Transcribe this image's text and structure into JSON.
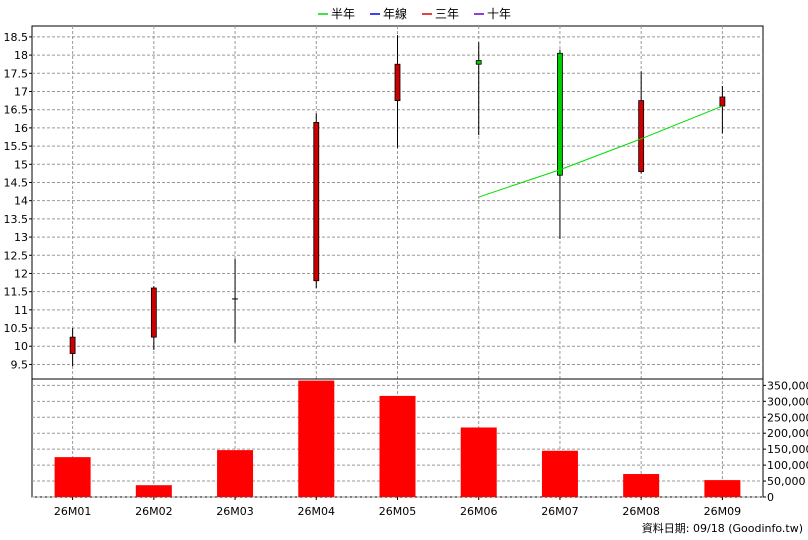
{
  "chart_data": [
    {
      "type": "candlestick",
      "categories": [
        "26M01",
        "26M02",
        "26M03",
        "26M04",
        "26M05",
        "26M06",
        "26M07",
        "26M08",
        "26M09"
      ],
      "ohlc": [
        {
          "open": 9.8,
          "high": 10.5,
          "low": 9.45,
          "close": 10.25
        },
        {
          "open": 10.25,
          "high": 11.65,
          "low": 9.9,
          "close": 11.6
        },
        {
          "open": 11.3,
          "high": 12.4,
          "low": 10.1,
          "close": 11.3
        },
        {
          "open": 11.8,
          "high": 16.4,
          "low": 11.6,
          "close": 16.15
        },
        {
          "open": 16.75,
          "high": 18.55,
          "low": 15.45,
          "close": 17.75
        },
        {
          "open": 17.85,
          "high": 18.35,
          "low": 15.8,
          "close": 17.75
        },
        {
          "open": 18.05,
          "high": 18.15,
          "low": 12.95,
          "close": 14.7
        },
        {
          "open": 14.8,
          "high": 17.55,
          "low": 14.75,
          "close": 16.75
        },
        {
          "open": 16.6,
          "high": 17.15,
          "low": 15.85,
          "close": 16.85
        }
      ],
      "series": [
        {
          "name": "半年",
          "color": "#00dd00",
          "values": [
            null,
            null,
            null,
            null,
            null,
            14.1,
            14.85,
            15.7,
            16.6
          ]
        },
        {
          "name": "年線",
          "color": "#0000ff",
          "values": [
            null,
            null,
            null,
            null,
            null,
            null,
            null,
            null,
            null
          ]
        },
        {
          "name": "三年",
          "color": "#dd0000",
          "values": [
            null,
            null,
            null,
            null,
            null,
            null,
            null,
            null,
            null
          ]
        },
        {
          "name": "十年",
          "color": "#6600cc",
          "values": [
            null,
            null,
            null,
            null,
            null,
            null,
            null,
            null,
            null
          ]
        }
      ],
      "ylim": [
        9.1,
        18.8
      ],
      "yticks": [
        "9.5",
        "10",
        "10.5",
        "11",
        "11.5",
        "12",
        "12.5",
        "13",
        "13.5",
        "14",
        "14.5",
        "15",
        "15.5",
        "16",
        "16.5",
        "17",
        "17.5",
        "18",
        "18.5"
      ],
      "grid": true,
      "legend": "top-center",
      "up_color": "#cc0000",
      "down_color": "#00cc00"
    },
    {
      "type": "bar",
      "categories": [
        "26M01",
        "26M02",
        "26M03",
        "26M04",
        "26M05",
        "26M06",
        "26M07",
        "26M08",
        "26M09"
      ],
      "values": [
        125000,
        37000,
        147000,
        365000,
        317000,
        218000,
        145000,
        72000,
        53000
      ],
      "ylim": [
        0,
        370000
      ],
      "yticks": [
        "0",
        "50,000",
        "100,000",
        "150,000",
        "200,000",
        "250,000",
        "300,000",
        "350,000"
      ],
      "bar_color": "#ff0000",
      "grid": true
    }
  ],
  "footer": "資料日期: 09/18  (Goodinfo.tw)"
}
